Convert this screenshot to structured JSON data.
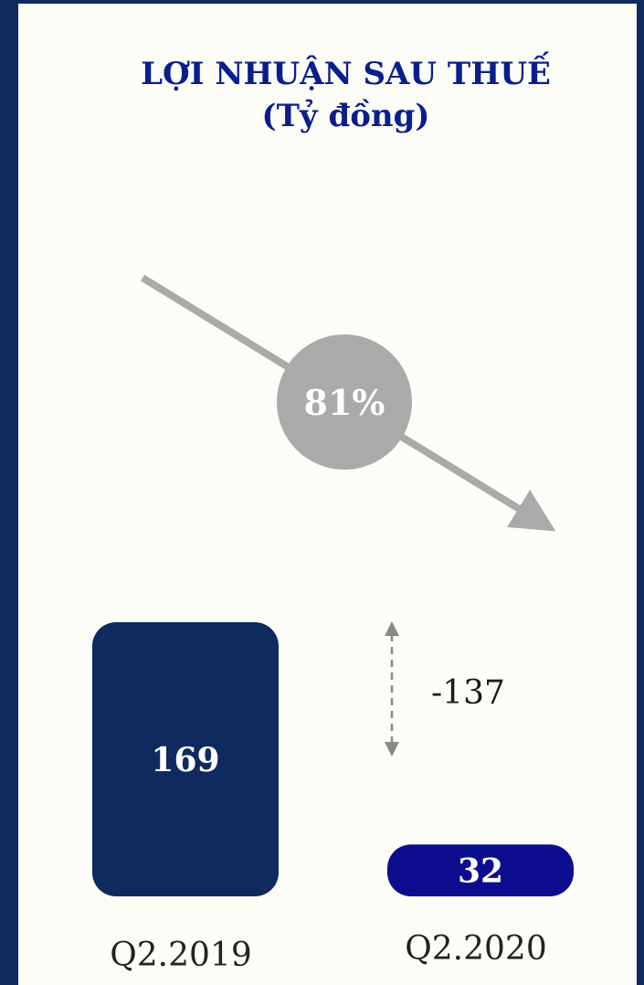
{
  "title": {
    "line1": "LỢI NHUẬN SAU THUẾ",
    "line2": "(Tỷ đồng)"
  },
  "chart_data": {
    "type": "bar",
    "categories": [
      "Q2.2019",
      "Q2.2020"
    ],
    "values": [
      169,
      32
    ],
    "difference_label": "-137",
    "change_label": "81%",
    "colors": [
      "#0f2a5e",
      "#0d0d8f"
    ],
    "arrow_color": "#aaaaaa"
  }
}
